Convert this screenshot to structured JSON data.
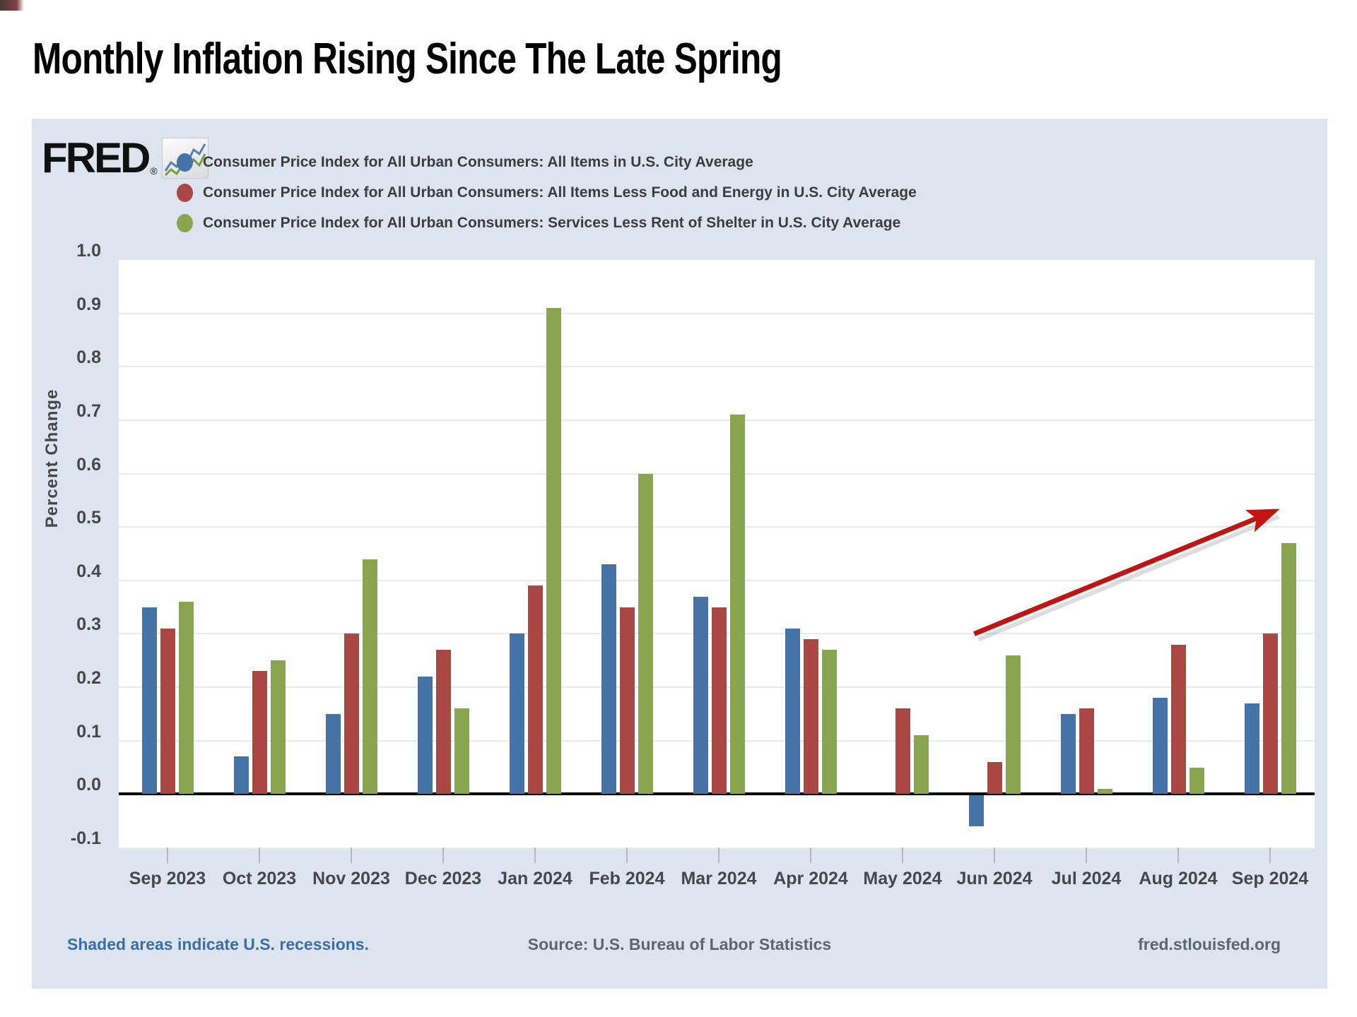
{
  "page": {
    "title": "Monthly Inflation Rising Since The Late Spring"
  },
  "chart": {
    "brand": {
      "logo_text": "FRED",
      "registered": "®"
    },
    "legend": [
      {
        "label": "Consumer Price Index for All Urban Consumers: All Items in U.S. City Average",
        "color": "#4572a7"
      },
      {
        "label": "Consumer Price Index for All Urban Consumers: All Items Less Food and Energy in U.S. City Average",
        "color": "#aa4643"
      },
      {
        "label": "Consumer Price Index for All Urban Consumers: Services Less Rent of Shelter in U.S. City Average",
        "color": "#89a54e"
      }
    ],
    "y_axis": {
      "label": "Percent Change",
      "ticks": [
        "1.0",
        "0.9",
        "0.8",
        "0.7",
        "0.6",
        "0.5",
        "0.4",
        "0.3",
        "0.2",
        "0.1",
        "0.0",
        "-0.1"
      ]
    },
    "footer": {
      "left": "Shaded areas indicate U.S. recessions.",
      "center": "Source: U.S. Bureau of Labor Statistics",
      "right": "fred.stlouisfed.org"
    },
    "colors": {
      "background": "#dce5ef",
      "plot": "#ffffff",
      "gridline": "#e9e9e9",
      "zero_line": "#000000",
      "axis_text": "#474747",
      "footer_link": "#3a6ea5",
      "footer_text": "#5c6670",
      "arrow": "#c31414"
    }
  },
  "chart_data": {
    "type": "bar",
    "title": "Monthly Inflation Rising Since The Late Spring",
    "xlabel": "",
    "ylabel": "Percent Change",
    "ylim": [
      -0.1,
      1.0
    ],
    "grid": true,
    "legend_position": "top-left",
    "categories": [
      "Sep 2023",
      "Oct 2023",
      "Nov 2023",
      "Dec 2023",
      "Jan 2024",
      "Feb 2024",
      "Mar 2024",
      "Apr 2024",
      "May 2024",
      "Jun 2024",
      "Jul 2024",
      "Aug 2024",
      "Sep 2024"
    ],
    "series": [
      {
        "name": "Consumer Price Index for All Urban Consumers: All Items in U.S. City Average",
        "color": "#4572a7",
        "values": [
          0.35,
          0.07,
          0.15,
          0.22,
          0.3,
          0.43,
          0.37,
          0.31,
          0.0,
          -0.06,
          0.15,
          0.18,
          0.17
        ]
      },
      {
        "name": "Consumer Price Index for All Urban Consumers: All Items Less Food and Energy in U.S. City Average",
        "color": "#aa4643",
        "values": [
          0.31,
          0.23,
          0.3,
          0.27,
          0.39,
          0.35,
          0.35,
          0.29,
          0.16,
          0.06,
          0.16,
          0.28,
          0.3
        ]
      },
      {
        "name": "Consumer Price Index for All Urban Consumers: Services Less Rent of Shelter in U.S. City Average",
        "color": "#89a54e",
        "values": [
          0.36,
          0.25,
          0.44,
          0.16,
          0.91,
          0.6,
          0.71,
          0.27,
          0.11,
          0.26,
          0.01,
          0.05,
          0.47
        ]
      }
    ],
    "annotation_arrow": {
      "from": {
        "x_index": 8.78,
        "y": 0.3
      },
      "to": {
        "x_index": 12.05,
        "y": 0.53
      },
      "color": "#c31414"
    }
  }
}
